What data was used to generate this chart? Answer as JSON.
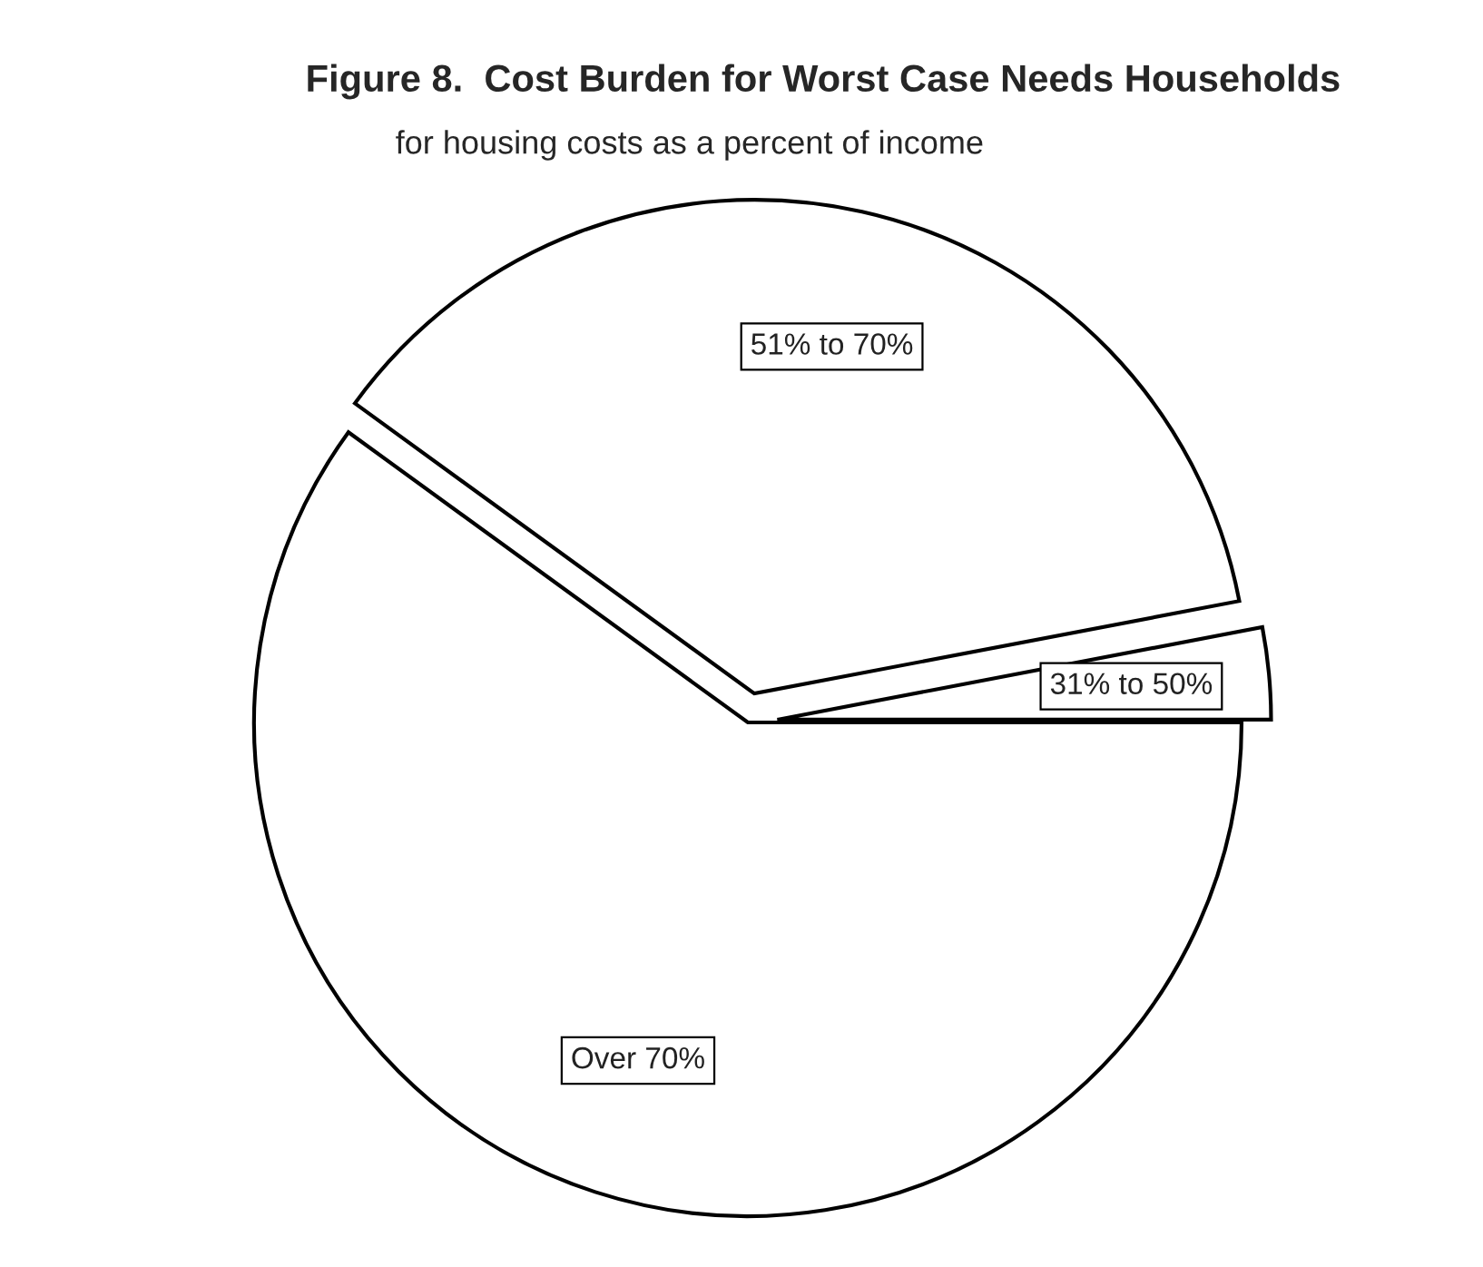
{
  "chart_data": {
    "type": "pie",
    "title": "Figure 8.  Cost Burden for Worst Case Needs Households",
    "subtitle": "for housing costs as a percent of income",
    "categories": [
      "31% to 50%",
      "51% to 70%",
      "Over 70%"
    ],
    "values": [
      3,
      37,
      60
    ],
    "colors": [
      "#ffffff",
      "#ffffff",
      "#ffffff"
    ]
  }
}
